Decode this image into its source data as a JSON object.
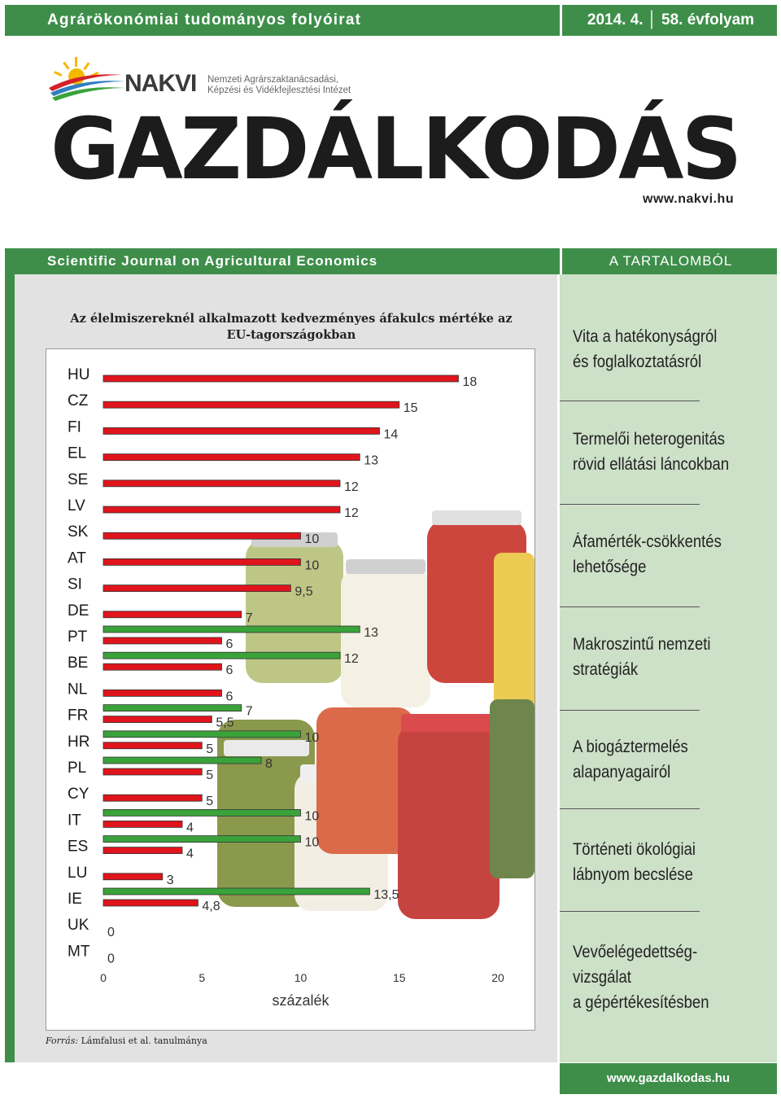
{
  "header": {
    "journal_hu": "Agrárökonómiai tudományos folyóirat",
    "issue": "2014. 4. │ 58. évfolyam"
  },
  "publisher": {
    "logo_name": "NAKVI",
    "full_name_line1": "Nemzeti Agrárszaktanácsadási,",
    "full_name_line2": "Képzési és Vidékfejlesztési Intézet",
    "url": "www.nakvi.hu"
  },
  "magazine_title": "GAZDÁLKODÁS",
  "subheader": {
    "journal_en": "Scientific Journal on Agricultural Economics",
    "contents_label": "A TARTALOMBÓL"
  },
  "chart_data": {
    "type": "bar",
    "orientation": "horizontal",
    "title": "Az élelmiszereknél alkalmazott kedvezményes áfakulcs mértéke az EU-tagországokban",
    "xlabel": "százalék",
    "xlim": [
      0,
      20
    ],
    "xticks": [
      "0",
      "5",
      "10",
      "15",
      "20"
    ],
    "categories": [
      "HU",
      "CZ",
      "FI",
      "EL",
      "SE",
      "LV",
      "SK",
      "AT",
      "SI",
      "DE",
      "PT",
      "BE",
      "NL",
      "FR",
      "HR",
      "PL",
      "CY",
      "IT",
      "ES",
      "LU",
      "IE",
      "UK",
      "MT"
    ],
    "series": [
      {
        "color": "#e0141c",
        "values": [
          18,
          15,
          14,
          13,
          12,
          12,
          10,
          10,
          9.5,
          7,
          6,
          6,
          6,
          5.5,
          5,
          5,
          5,
          4,
          4,
          3,
          4.8,
          0,
          0
        ],
        "labels": [
          "18",
          "15",
          "14",
          "13",
          "12",
          "12",
          "10",
          "10",
          "9,5",
          "7",
          "6",
          "6",
          "6",
          "5,5",
          "5",
          "5",
          "5",
          "4",
          "4",
          "3",
          "4,8",
          "0",
          "0"
        ]
      },
      {
        "color": "#3aa23a",
        "values": [
          null,
          null,
          null,
          null,
          null,
          null,
          null,
          null,
          null,
          null,
          13,
          12,
          null,
          7,
          10,
          8,
          null,
          10,
          10,
          null,
          13.5,
          null,
          null
        ],
        "labels": [
          null,
          null,
          null,
          null,
          null,
          null,
          null,
          null,
          null,
          null,
          "13",
          "12",
          null,
          "7",
          "10",
          "8",
          null,
          "10",
          "10",
          null,
          "13,5",
          null,
          null
        ]
      }
    ]
  },
  "source": {
    "label": "Forrás:",
    "text": " Lámfalusi et al. tanulmánya"
  },
  "toc": [
    {
      "line1": "Vita a hatékonyságról",
      "line2": "és foglalkoztatásról",
      "line3": ""
    },
    {
      "line1": "Termelői heterogenitás",
      "line2": "rövid ellátási láncokban",
      "line3": ""
    },
    {
      "line1": "Áfamérték-csökkentés",
      "line2": "lehetősége",
      "line3": ""
    },
    {
      "line1": "Makroszintű nemzeti",
      "line2": "stratégiák",
      "line3": ""
    },
    {
      "line1": "A biogáztermelés",
      "line2": "alapanyagairól",
      "line3": ""
    },
    {
      "line1": "Történeti ökológiai",
      "line2": "lábnyom becslése",
      "line3": ""
    },
    {
      "line1": "Vevőelégedettség-",
      "line2": "vizsgálat",
      "line3": "a gépértékesítésben"
    }
  ],
  "footer_url": "www.gazdalkodas.hu"
}
